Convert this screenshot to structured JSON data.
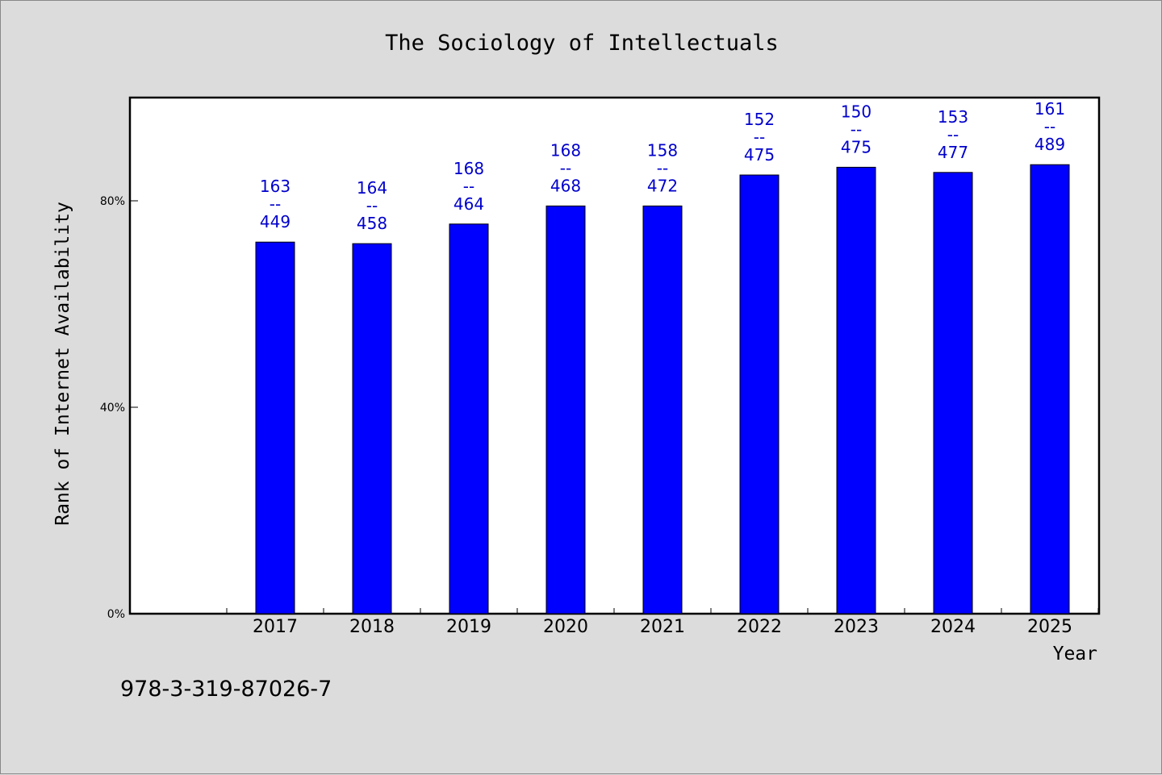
{
  "chart_data": {
    "type": "bar",
    "title": "The Sociology of Intellectuals",
    "xlabel": "Year",
    "ylabel": "Rank of Internet Availability",
    "categories": [
      "2017",
      "2018",
      "2019",
      "2020",
      "2021",
      "2022",
      "2023",
      "2024",
      "2025"
    ],
    "values": [
      0.72,
      0.717,
      0.755,
      0.79,
      0.79,
      0.85,
      0.865,
      0.855,
      0.87
    ],
    "data_labels": [
      {
        "top": "163",
        "sep": "--",
        "bottom": "449"
      },
      {
        "top": "164",
        "sep": "--",
        "bottom": "458"
      },
      {
        "top": "168",
        "sep": "--",
        "bottom": "464"
      },
      {
        "top": "168",
        "sep": "--",
        "bottom": "468"
      },
      {
        "top": "158",
        "sep": "--",
        "bottom": "472"
      },
      {
        "top": "152",
        "sep": "--",
        "bottom": "475"
      },
      {
        "top": "150",
        "sep": "--",
        "bottom": "475"
      },
      {
        "top": "153",
        "sep": "--",
        "bottom": "477"
      },
      {
        "top": "161",
        "sep": "--",
        "bottom": "489"
      }
    ],
    "ylim": [
      0,
      1.0
    ],
    "yticks": [
      {
        "value": 0,
        "label": "0%"
      },
      {
        "value": 0.4,
        "label": "40%"
      },
      {
        "value": 0.8,
        "label": "80%"
      }
    ],
    "grid": false,
    "colors": {
      "bar": "#0000ff",
      "bar_label": "#0000cc",
      "background": "#dcdcdc",
      "plot_background": "#ffffff"
    }
  },
  "footer": {
    "isbn": "978-3-319-87026-7"
  }
}
